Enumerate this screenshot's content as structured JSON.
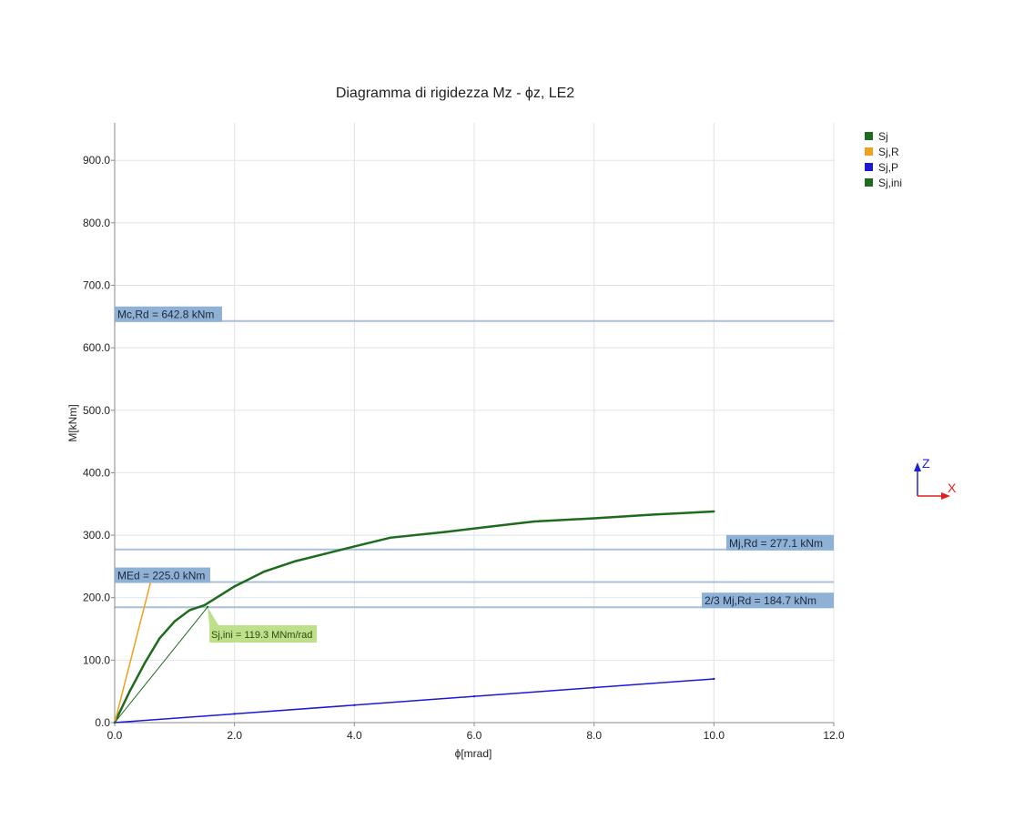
{
  "chart_data": {
    "type": "line",
    "title": "Diagramma di rigidezza Mz - ϕz, LE2",
    "xlabel": "ϕ[mrad]",
    "ylabel": "M[kNm]",
    "xlim": [
      0,
      12
    ],
    "ylim": [
      0,
      960
    ],
    "x_ticks": [
      0,
      2,
      4,
      6,
      8,
      10,
      12
    ],
    "x_tick_labels": [
      "0.0",
      "2.0",
      "4.0",
      "6.0",
      "8.0",
      "10.0",
      "12.0"
    ],
    "y_ticks": [
      0,
      100,
      200,
      300,
      400,
      500,
      600,
      700,
      800,
      900
    ],
    "y_tick_labels": [
      "0.0",
      "100.0",
      "200.0",
      "300.0",
      "400.0",
      "500.0",
      "600.0",
      "700.0",
      "800.0",
      "900.0"
    ],
    "grid": true,
    "legend_position": "top-right",
    "series": [
      {
        "name": "Sj",
        "color": "#1e6b1e",
        "points": [
          [
            0,
            0
          ],
          [
            0.25,
            50
          ],
          [
            0.5,
            95
          ],
          [
            0.75,
            135
          ],
          [
            1.0,
            162
          ],
          [
            1.25,
            180
          ],
          [
            1.5,
            188
          ],
          [
            2.0,
            218
          ],
          [
            2.5,
            242
          ],
          [
            3.0,
            258
          ],
          [
            3.5,
            270
          ],
          [
            4.0,
            282
          ],
          [
            4.6,
            296
          ],
          [
            5.5,
            305
          ],
          [
            6.2,
            313
          ],
          [
            7.0,
            322
          ],
          [
            8.0,
            327
          ],
          [
            9.0,
            333
          ],
          [
            10.0,
            338
          ]
        ]
      },
      {
        "name": "Sj,R",
        "color": "#f0a020",
        "points": [
          [
            0,
            0
          ],
          [
            0.6,
            225
          ]
        ]
      },
      {
        "name": "Sj,P",
        "color": "#1a1ad6",
        "points": [
          [
            0,
            0
          ],
          [
            2.0,
            14
          ],
          [
            4.0,
            28
          ],
          [
            6.0,
            42
          ],
          [
            8.0,
            56
          ],
          [
            10.0,
            70
          ]
        ]
      },
      {
        "name": "Sj,ini",
        "color": "#1e6b1e",
        "points": [
          [
            0,
            0
          ],
          [
            1.55,
            185
          ]
        ]
      }
    ],
    "reference_lines": [
      {
        "label": "Mc,Rd = 642.8 kNm",
        "value": 642.8,
        "label_side": "left"
      },
      {
        "label": "Mj,Rd = 277.1 kNm",
        "value": 277.1,
        "label_side": "right"
      },
      {
        "label": "MEd = 225.0 kNm",
        "value": 225.0,
        "label_side": "left"
      },
      {
        "label": "2/3 Mj,Rd = 184.7 kNm",
        "value": 184.7,
        "label_side": "right"
      }
    ],
    "annotation": {
      "text": "Sj,ini = 119.3 MNm/rad",
      "x": 1.55,
      "y": 185
    }
  },
  "colors": {
    "ref_line": "#a9c0d6",
    "ref_label_bg": "#8fb1d6",
    "note_bg": "#bfe08a",
    "triad_z": "#2020d0",
    "triad_x": "#e02020"
  },
  "triad": {
    "z_label": "Z",
    "x_label": "X"
  }
}
